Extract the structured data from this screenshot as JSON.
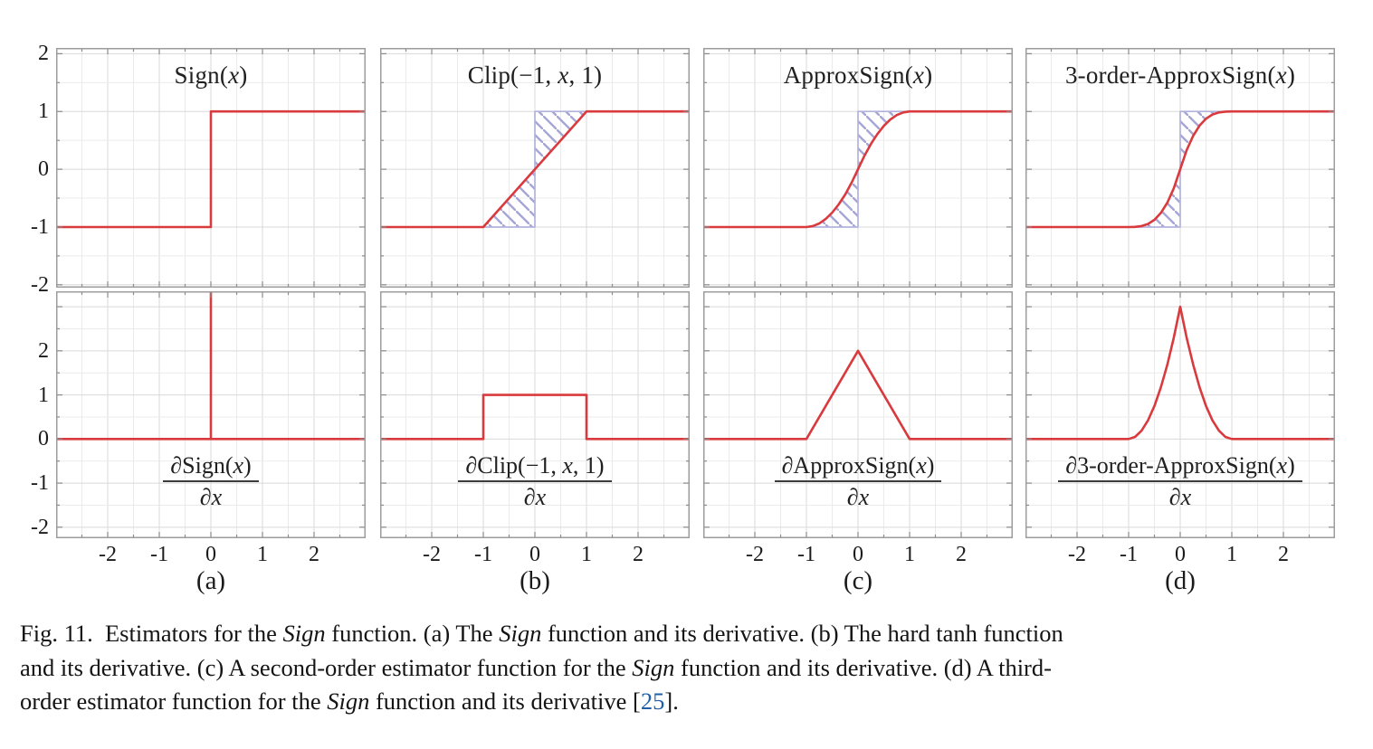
{
  "colors": {
    "curve_red": "#d93a3e",
    "hatch_purple": "#a6a6d6",
    "hatch_outline": "#b2b2dc",
    "grid_major": "#d9d9d9",
    "grid_minor": "#ebebeb",
    "box_border": "#9c9c9c",
    "tick_mark": "#8a8a8a",
    "caption_link_blue": "#1e5fa8",
    "text": "#1a1a1a"
  },
  "figure": {
    "panels": [
      {
        "label": "(a)",
        "top_title_runs": [
          {
            "t": "Sign(",
            "s": "r"
          },
          {
            "t": "x",
            "s": "i"
          },
          {
            "t": ")",
            "s": "r"
          }
        ],
        "bottom_num_runs": [
          {
            "t": "∂",
            "s": "i"
          },
          {
            "t": "Sign(",
            "s": "r"
          },
          {
            "t": "x",
            "s": "i"
          },
          {
            "t": ")",
            "s": "r"
          }
        ],
        "bottom_den_runs": [
          {
            "t": "∂x",
            "s": "i"
          }
        ]
      },
      {
        "label": "(b)",
        "top_title_runs": [
          {
            "t": "Clip(−1, ",
            "s": "r"
          },
          {
            "t": "x",
            "s": "i"
          },
          {
            "t": ", 1)",
            "s": "r"
          }
        ],
        "bottom_num_runs": [
          {
            "t": "∂",
            "s": "i"
          },
          {
            "t": "Clip(−1, ",
            "s": "r"
          },
          {
            "t": "x",
            "s": "i"
          },
          {
            "t": ", 1)",
            "s": "r"
          }
        ],
        "bottom_den_runs": [
          {
            "t": "∂x",
            "s": "i"
          }
        ]
      },
      {
        "label": "(c)",
        "top_title_runs": [
          {
            "t": "ApproxSign(",
            "s": "r"
          },
          {
            "t": "x",
            "s": "i"
          },
          {
            "t": ")",
            "s": "r"
          }
        ],
        "bottom_num_runs": [
          {
            "t": "∂",
            "s": "i"
          },
          {
            "t": "ApproxSign(",
            "s": "r"
          },
          {
            "t": "x",
            "s": "i"
          },
          {
            "t": ")",
            "s": "r"
          }
        ],
        "bottom_den_runs": [
          {
            "t": "∂x",
            "s": "i"
          }
        ]
      },
      {
        "label": "(d)",
        "top_title_runs": [
          {
            "t": "3-order-ApproxSign(",
            "s": "r"
          },
          {
            "t": "x",
            "s": "i"
          },
          {
            "t": ")",
            "s": "r"
          }
        ],
        "bottom_num_runs": [
          {
            "t": "∂",
            "s": "i"
          },
          {
            "t": "3-order-ApproxSign(",
            "s": "r"
          },
          {
            "t": "x",
            "s": "i"
          },
          {
            "t": ")",
            "s": "r"
          }
        ],
        "bottom_den_runs": [
          {
            "t": "∂x",
            "s": "i"
          }
        ]
      }
    ]
  },
  "chart_data": [
    {
      "type": "line",
      "panel": "a",
      "row": "function",
      "title": "Sign(x)",
      "xlim": [
        -3,
        3
      ],
      "ylim": [
        -2.05,
        2.1
      ],
      "x_ticks": [
        -2,
        -1,
        0,
        1,
        2
      ],
      "y_ticks": [
        2,
        1,
        0,
        -1,
        -2
      ],
      "grid": true,
      "grid_step": 0.5,
      "series": [
        {
          "name": "Sign(x)",
          "points": [
            [
              -3,
              -1
            ],
            [
              0,
              -1
            ],
            [
              0,
              1
            ],
            [
              3,
              1
            ]
          ]
        }
      ],
      "hatch_polygons": []
    },
    {
      "type": "line",
      "panel": "b",
      "row": "function",
      "title": "Clip(-1, x, 1)",
      "xlim": [
        -3,
        3
      ],
      "ylim": [
        -2.05,
        2.1
      ],
      "x_ticks": [
        -2,
        -1,
        0,
        1,
        2
      ],
      "y_ticks": [
        2,
        1,
        0,
        -1,
        -2
      ],
      "grid": true,
      "grid_step": 0.5,
      "series": [
        {
          "name": "Clip(-1,x,1)",
          "points": [
            [
              -3,
              -1
            ],
            [
              -1,
              -1
            ],
            [
              1,
              1
            ],
            [
              3,
              1
            ]
          ]
        }
      ],
      "hatch_polygons": [
        [
          [
            -1,
            -1
          ],
          [
            0,
            0
          ],
          [
            0,
            -1
          ]
        ],
        [
          [
            0,
            0
          ],
          [
            1,
            1
          ],
          [
            0,
            1
          ]
        ]
      ]
    },
    {
      "type": "line",
      "panel": "c",
      "row": "function",
      "title": "ApproxSign(x)",
      "xlim": [
        -3,
        3
      ],
      "ylim": [
        -2.05,
        2.1
      ],
      "x_ticks": [
        -2,
        -1,
        0,
        1,
        2
      ],
      "y_ticks": [
        2,
        1,
        0,
        -1,
        -2
      ],
      "grid": true,
      "grid_step": 0.5,
      "series": [
        {
          "name": "ApproxSign(x)",
          "points": [
            [
              -3,
              -1
            ],
            [
              -2,
              -1
            ],
            [
              -1,
              -1
            ],
            [
              -0.875,
              -0.984
            ],
            [
              -0.75,
              -0.938
            ],
            [
              -0.625,
              -0.859
            ],
            [
              -0.5,
              -0.75
            ],
            [
              -0.375,
              -0.609
            ],
            [
              -0.25,
              -0.438
            ],
            [
              -0.125,
              -0.234
            ],
            [
              0,
              0
            ],
            [
              0.125,
              0.234
            ],
            [
              0.25,
              0.438
            ],
            [
              0.375,
              0.609
            ],
            [
              0.5,
              0.75
            ],
            [
              0.625,
              0.859
            ],
            [
              0.75,
              0.938
            ],
            [
              0.875,
              0.984
            ],
            [
              1,
              1
            ],
            [
              2,
              1
            ],
            [
              3,
              1
            ]
          ]
        }
      ],
      "hatch_polygons": [
        [
          [
            -1,
            -1
          ],
          [
            -0.875,
            -0.984
          ],
          [
            -0.75,
            -0.938
          ],
          [
            -0.625,
            -0.859
          ],
          [
            -0.5,
            -0.75
          ],
          [
            -0.375,
            -0.609
          ],
          [
            -0.25,
            -0.438
          ],
          [
            -0.125,
            -0.234
          ],
          [
            0,
            0
          ],
          [
            0,
            -1
          ]
        ],
        [
          [
            0,
            0
          ],
          [
            0.125,
            0.234
          ],
          [
            0.25,
            0.438
          ],
          [
            0.375,
            0.609
          ],
          [
            0.5,
            0.75
          ],
          [
            0.625,
            0.859
          ],
          [
            0.75,
            0.938
          ],
          [
            0.875,
            0.984
          ],
          [
            1,
            1
          ],
          [
            0,
            1
          ]
        ]
      ]
    },
    {
      "type": "line",
      "panel": "d",
      "row": "function",
      "title": "3-order-ApproxSign(x)",
      "xlim": [
        -3,
        3
      ],
      "ylim": [
        -2.05,
        2.1
      ],
      "x_ticks": [
        -2,
        -1,
        0,
        1,
        2
      ],
      "y_ticks": [
        2,
        1,
        0,
        -1,
        -2
      ],
      "grid": true,
      "grid_step": 0.5,
      "series": [
        {
          "name": "3-order-ApproxSign(x)",
          "points": [
            [
              -3,
              -1
            ],
            [
              -2,
              -1
            ],
            [
              -1,
              -1
            ],
            [
              -0.875,
              -0.998
            ],
            [
              -0.75,
              -0.984
            ],
            [
              -0.625,
              -0.947
            ],
            [
              -0.5,
              -0.875
            ],
            [
              -0.375,
              -0.756
            ],
            [
              -0.25,
              -0.578
            ],
            [
              -0.125,
              -0.33
            ],
            [
              0,
              0
            ],
            [
              0.125,
              0.33
            ],
            [
              0.25,
              0.578
            ],
            [
              0.375,
              0.756
            ],
            [
              0.5,
              0.875
            ],
            [
              0.625,
              0.947
            ],
            [
              0.75,
              0.984
            ],
            [
              0.875,
              0.998
            ],
            [
              1,
              1
            ],
            [
              2,
              1
            ],
            [
              3,
              1
            ]
          ]
        }
      ],
      "hatch_polygons": [
        [
          [
            -1,
            -1
          ],
          [
            -0.875,
            -0.998
          ],
          [
            -0.75,
            -0.984
          ],
          [
            -0.625,
            -0.947
          ],
          [
            -0.5,
            -0.875
          ],
          [
            -0.375,
            -0.756
          ],
          [
            -0.25,
            -0.578
          ],
          [
            -0.125,
            -0.33
          ],
          [
            0,
            0
          ],
          [
            0,
            -1
          ]
        ],
        [
          [
            0,
            0
          ],
          [
            0.125,
            0.33
          ],
          [
            0.25,
            0.578
          ],
          [
            0.375,
            0.756
          ],
          [
            0.5,
            0.875
          ],
          [
            0.625,
            0.947
          ],
          [
            0.75,
            0.984
          ],
          [
            0.875,
            0.998
          ],
          [
            1,
            1
          ],
          [
            0,
            1
          ]
        ]
      ]
    },
    {
      "type": "line",
      "panel": "a",
      "row": "derivative",
      "title": "dSign(x)/dx",
      "xlim": [
        -3,
        3
      ],
      "ylim": [
        -2.25,
        3.35
      ],
      "x_ticks": [
        -2,
        -1,
        0,
        1,
        2
      ],
      "y_ticks": [
        2,
        1,
        0,
        -1,
        -2
      ],
      "grid": true,
      "grid_step": 0.5,
      "series": [
        {
          "name": "dSign/dx",
          "points": [
            [
              -3,
              0
            ],
            [
              0,
              0
            ],
            [
              0,
              3.35
            ],
            [
              0,
              0
            ],
            [
              3,
              0
            ]
          ]
        }
      ],
      "hatch_polygons": []
    },
    {
      "type": "line",
      "panel": "b",
      "row": "derivative",
      "title": "dClip(-1,x,1)/dx",
      "xlim": [
        -3,
        3
      ],
      "ylim": [
        -2.25,
        3.35
      ],
      "x_ticks": [
        -2,
        -1,
        0,
        1,
        2
      ],
      "y_ticks": [
        2,
        1,
        0,
        -1,
        -2
      ],
      "grid": true,
      "grid_step": 0.5,
      "series": [
        {
          "name": "dClip/dx",
          "points": [
            [
              -3,
              0
            ],
            [
              -1,
              0
            ],
            [
              -1,
              1
            ],
            [
              1,
              1
            ],
            [
              1,
              0
            ],
            [
              3,
              0
            ]
          ]
        }
      ],
      "hatch_polygons": []
    },
    {
      "type": "line",
      "panel": "c",
      "row": "derivative",
      "title": "dApproxSign(x)/dx",
      "xlim": [
        -3,
        3
      ],
      "ylim": [
        -2.25,
        3.35
      ],
      "x_ticks": [
        -2,
        -1,
        0,
        1,
        2
      ],
      "y_ticks": [
        2,
        1,
        0,
        -1,
        -2
      ],
      "grid": true,
      "grid_step": 0.5,
      "series": [
        {
          "name": "dApproxSign/dx",
          "points": [
            [
              -3,
              0
            ],
            [
              -1,
              0
            ],
            [
              0,
              2
            ],
            [
              1,
              0
            ],
            [
              3,
              0
            ]
          ]
        }
      ],
      "hatch_polygons": []
    },
    {
      "type": "line",
      "panel": "d",
      "row": "derivative",
      "title": "d3-order-ApproxSign(x)/dx",
      "xlim": [
        -3,
        3
      ],
      "ylim": [
        -2.25,
        3.35
      ],
      "x_ticks": [
        -2,
        -1,
        0,
        1,
        2
      ],
      "y_ticks": [
        2,
        1,
        0,
        -1,
        -2
      ],
      "grid": true,
      "grid_step": 0.5,
      "series": [
        {
          "name": "d3orderApproxSign/dx",
          "points": [
            [
              -3,
              0
            ],
            [
              -1,
              0
            ],
            [
              -0.875,
              0.047
            ],
            [
              -0.75,
              0.188
            ],
            [
              -0.625,
              0.422
            ],
            [
              -0.5,
              0.75
            ],
            [
              -0.375,
              1.172
            ],
            [
              -0.25,
              1.688
            ],
            [
              -0.125,
              2.297
            ],
            [
              0,
              3
            ],
            [
              0.125,
              2.297
            ],
            [
              0.25,
              1.688
            ],
            [
              0.375,
              1.172
            ],
            [
              0.5,
              0.75
            ],
            [
              0.625,
              0.422
            ],
            [
              0.75,
              0.188
            ],
            [
              0.875,
              0.047
            ],
            [
              1,
              0
            ],
            [
              3,
              0
            ]
          ]
        }
      ],
      "hatch_polygons": []
    }
  ],
  "caption": {
    "lines": [
      [
        {
          "t": "Fig. 11.  Estimators for the ",
          "s": "r"
        },
        {
          "t": "Sign",
          "s": "i"
        },
        {
          "t": " function. (a) The ",
          "s": "r"
        },
        {
          "t": "Sign",
          "s": "i"
        },
        {
          "t": " function and its derivative. (b) The hard tanh function",
          "s": "r"
        }
      ],
      [
        {
          "t": "and its derivative. (c) A second-order estimator function for the ",
          "s": "r"
        },
        {
          "t": "Sign",
          "s": "i"
        },
        {
          "t": " function and its derivative. (d) A third-",
          "s": "r"
        }
      ],
      [
        {
          "t": "order estimator function for the ",
          "s": "r"
        },
        {
          "t": "Sign",
          "s": "i"
        },
        {
          "t": " function and its derivative [",
          "s": "r"
        },
        {
          "t": "25",
          "s": "link"
        },
        {
          "t": "].",
          "s": "r"
        }
      ]
    ]
  }
}
